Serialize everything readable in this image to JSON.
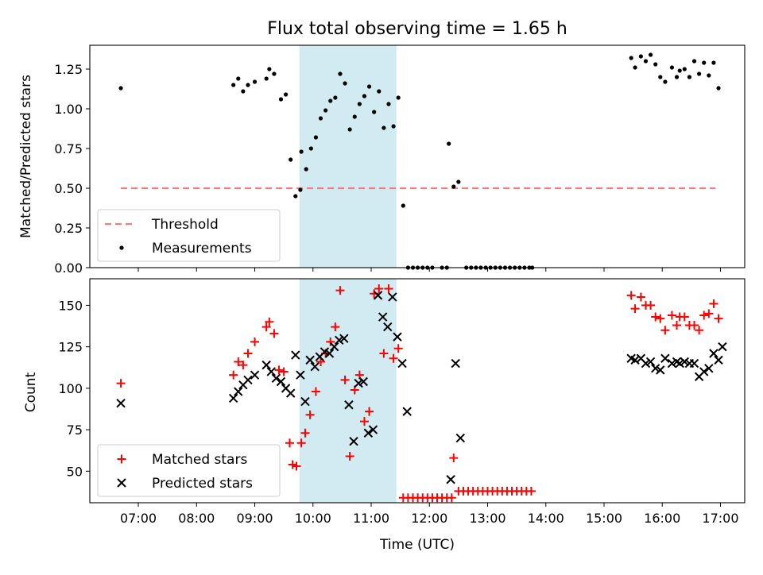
{
  "title": "Flux total observing time = 1.65 h",
  "colors": {
    "shade": "#add8e6",
    "threshold": "#f08080",
    "measurement": "#000000",
    "matched": "#ff0000",
    "predicted": "#000000"
  },
  "chart_data": [
    {
      "type": "scatter",
      "ylabel": "Matched/Predicted stars",
      "ylim": [
        0,
        1.4
      ],
      "yticks": [
        0,
        0.25,
        0.5,
        0.75,
        1.0,
        1.25
      ],
      "ytick_labels": [
        "0.00",
        "0.25",
        "0.50",
        "0.75",
        "1.00",
        "1.25"
      ],
      "legend": [
        "Threshold",
        "Measurements"
      ],
      "legend_location": "lower-left",
      "shaded_interval": [
        "09:46",
        "11:26"
      ],
      "threshold": {
        "name": "Threshold",
        "y": 0.5,
        "x": [
          "06:42",
          "16:55"
        ]
      },
      "series": [
        {
          "name": "Measurements",
          "points": [
            [
              "06:42",
              1.13
            ],
            [
              "08:38",
              1.15
            ],
            [
              "08:43",
              1.19
            ],
            [
              "08:48",
              1.11
            ],
            [
              "08:53",
              1.15
            ],
            [
              "09:00",
              1.17
            ],
            [
              "09:12",
              1.19
            ],
            [
              "09:15",
              1.25
            ],
            [
              "09:20",
              1.22
            ],
            [
              "09:27",
              1.06
            ],
            [
              "09:32",
              1.09
            ],
            [
              "09:37",
              0.68
            ],
            [
              "09:42",
              0.45
            ],
            [
              "09:47",
              0.49
            ],
            [
              "09:48",
              0.73
            ],
            [
              "09:53",
              0.62
            ],
            [
              "09:58",
              0.75
            ],
            [
              "10:03",
              0.82
            ],
            [
              "10:08",
              0.94
            ],
            [
              "10:13",
              0.99
            ],
            [
              "10:18",
              1.05
            ],
            [
              "10:23",
              1.07
            ],
            [
              "10:28",
              1.22
            ],
            [
              "10:33",
              1.16
            ],
            [
              "10:38",
              0.87
            ],
            [
              "10:43",
              0.95
            ],
            [
              "10:48",
              1.03
            ],
            [
              "10:53",
              1.08
            ],
            [
              "10:58",
              1.14
            ],
            [
              "11:03",
              0.98
            ],
            [
              "11:08",
              1.11
            ],
            [
              "11:13",
              0.88
            ],
            [
              "11:18",
              1.03
            ],
            [
              "11:23",
              0.89
            ],
            [
              "11:28",
              1.07
            ],
            [
              "11:33",
              0.39
            ],
            [
              "11:38",
              0.0
            ],
            [
              "11:43",
              0.0
            ],
            [
              "11:48",
              0.0
            ],
            [
              "11:53",
              0.0
            ],
            [
              "11:58",
              0.0
            ],
            [
              "12:03",
              0.0
            ],
            [
              "12:13",
              0.0
            ],
            [
              "12:18",
              0.0
            ],
            [
              "12:20",
              0.78
            ],
            [
              "12:25",
              0.51
            ],
            [
              "12:30",
              0.54
            ],
            [
              "12:38",
              0.0
            ],
            [
              "12:43",
              0.0
            ],
            [
              "12:48",
              0.0
            ],
            [
              "12:53",
              0.0
            ],
            [
              "12:58",
              0.0
            ],
            [
              "13:03",
              0.0
            ],
            [
              "13:08",
              0.0
            ],
            [
              "13:13",
              0.0
            ],
            [
              "13:18",
              0.0
            ],
            [
              "13:23",
              0.0
            ],
            [
              "13:28",
              0.0
            ],
            [
              "13:33",
              0.0
            ],
            [
              "13:38",
              0.0
            ],
            [
              "13:43",
              0.0
            ],
            [
              "13:46",
              0.0
            ],
            [
              "15:28",
              1.32
            ],
            [
              "15:32",
              1.26
            ],
            [
              "15:38",
              1.33
            ],
            [
              "15:43",
              1.3
            ],
            [
              "15:48",
              1.34
            ],
            [
              "15:53",
              1.28
            ],
            [
              "15:58",
              1.2
            ],
            [
              "16:03",
              1.17
            ],
            [
              "16:10",
              1.26
            ],
            [
              "16:15",
              1.2
            ],
            [
              "16:18",
              1.24
            ],
            [
              "16:23",
              1.25
            ],
            [
              "16:28",
              1.2
            ],
            [
              "16:33",
              1.3
            ],
            [
              "16:38",
              1.22
            ],
            [
              "16:43",
              1.29
            ],
            [
              "16:48",
              1.21
            ],
            [
              "16:53",
              1.29
            ],
            [
              "16:58",
              1.13
            ]
          ]
        }
      ]
    },
    {
      "type": "scatter",
      "xlabel": "Time (UTC)",
      "ylabel": "Count",
      "ylim": [
        31,
        166
      ],
      "yticks": [
        50,
        75,
        100,
        125,
        150
      ],
      "ytick_labels": [
        "50",
        "75",
        "100",
        "125",
        "150"
      ],
      "xlim": [
        "06:10",
        "17:25"
      ],
      "xticks": [
        "07:00",
        "08:00",
        "09:00",
        "10:00",
        "11:00",
        "12:00",
        "13:00",
        "14:00",
        "15:00",
        "16:00",
        "17:00"
      ],
      "legend": [
        "Matched stars",
        "Predicted stars"
      ],
      "legend_location": "lower-left",
      "shaded_interval": [
        "09:46",
        "11:26"
      ],
      "series": [
        {
          "name": "Matched stars",
          "marker": "+",
          "points": [
            [
              "06:42",
              103
            ],
            [
              "08:38",
              108
            ],
            [
              "08:43",
              116
            ],
            [
              "08:48",
              114
            ],
            [
              "08:53",
              121
            ],
            [
              "09:00",
              128
            ],
            [
              "09:12",
              137
            ],
            [
              "09:15",
              140
            ],
            [
              "09:20",
              133
            ],
            [
              "09:25",
              111
            ],
            [
              "09:30",
              110
            ],
            [
              "09:36",
              67
            ],
            [
              "09:39",
              54
            ],
            [
              "09:43",
              53
            ],
            [
              "09:48",
              67
            ],
            [
              "09:52",
              73
            ],
            [
              "09:57",
              84
            ],
            [
              "10:03",
              98
            ],
            [
              "10:08",
              116
            ],
            [
              "10:13",
              121
            ],
            [
              "10:18",
              128
            ],
            [
              "10:23",
              137
            ],
            [
              "10:28",
              159
            ],
            [
              "10:33",
              105
            ],
            [
              "10:38",
              59
            ],
            [
              "10:43",
              99
            ],
            [
              "10:48",
              108
            ],
            [
              "10:53",
              80
            ],
            [
              "10:58",
              86
            ],
            [
              "11:03",
              157
            ],
            [
              "11:08",
              160
            ],
            [
              "11:13",
              121
            ],
            [
              "11:18",
              160
            ],
            [
              "11:23",
              118
            ],
            [
              "11:28",
              124
            ],
            [
              "11:33",
              34
            ],
            [
              "11:38",
              34
            ],
            [
              "11:43",
              34
            ],
            [
              "11:48",
              34
            ],
            [
              "11:53",
              34
            ],
            [
              "11:58",
              34
            ],
            [
              "12:03",
              34
            ],
            [
              "12:08",
              34
            ],
            [
              "12:13",
              34
            ],
            [
              "12:18",
              34
            ],
            [
              "12:23",
              34
            ],
            [
              "12:25",
              58
            ],
            [
              "12:30",
              38
            ],
            [
              "12:35",
              38
            ],
            [
              "12:40",
              38
            ],
            [
              "12:45",
              38
            ],
            [
              "12:50",
              38
            ],
            [
              "12:55",
              38
            ],
            [
              "13:00",
              38
            ],
            [
              "13:05",
              38
            ],
            [
              "13:10",
              38
            ],
            [
              "13:15",
              38
            ],
            [
              "13:20",
              38
            ],
            [
              "13:25",
              38
            ],
            [
              "13:30",
              38
            ],
            [
              "13:35",
              38
            ],
            [
              "13:40",
              38
            ],
            [
              "13:45",
              38
            ],
            [
              "15:28",
              156
            ],
            [
              "15:32",
              148
            ],
            [
              "15:38",
              155
            ],
            [
              "15:43",
              150
            ],
            [
              "15:48",
              150
            ],
            [
              "15:53",
              143
            ],
            [
              "15:58",
              142
            ],
            [
              "16:03",
              135
            ],
            [
              "16:10",
              144
            ],
            [
              "16:15",
              138
            ],
            [
              "16:18",
              143
            ],
            [
              "16:23",
              143
            ],
            [
              "16:28",
              138
            ],
            [
              "16:33",
              138
            ],
            [
              "16:38",
              135
            ],
            [
              "16:43",
              144
            ],
            [
              "16:48",
              145
            ],
            [
              "16:53",
              151
            ],
            [
              "16:58",
              142
            ]
          ]
        },
        {
          "name": "Predicted stars",
          "marker": "x",
          "points": [
            [
              "06:42",
              91
            ],
            [
              "08:38",
              94
            ],
            [
              "08:43",
              98
            ],
            [
              "08:48",
              102
            ],
            [
              "08:53",
              105
            ],
            [
              "09:00",
              108
            ],
            [
              "09:12",
              114
            ],
            [
              "09:17",
              110
            ],
            [
              "09:22",
              106
            ],
            [
              "09:27",
              104
            ],
            [
              "09:32",
              100
            ],
            [
              "09:37",
              97
            ],
            [
              "09:42",
              120
            ],
            [
              "09:47",
              108
            ],
            [
              "09:52",
              92
            ],
            [
              "09:57",
              117
            ],
            [
              "10:02",
              113
            ],
            [
              "10:07",
              119
            ],
            [
              "10:12",
              122
            ],
            [
              "10:17",
              121
            ],
            [
              "10:22",
              125
            ],
            [
              "10:27",
              129
            ],
            [
              "10:32",
              130
            ],
            [
              "10:37",
              90
            ],
            [
              "10:42",
              68
            ],
            [
              "10:47",
              103
            ],
            [
              "10:52",
              104
            ],
            [
              "10:57",
              73
            ],
            [
              "11:02",
              75
            ],
            [
              "11:07",
              156
            ],
            [
              "11:12",
              143
            ],
            [
              "11:17",
              137
            ],
            [
              "11:22",
              155
            ],
            [
              "11:27",
              131
            ],
            [
              "11:32",
              115
            ],
            [
              "11:37",
              86
            ],
            [
              "12:22",
              45
            ],
            [
              "12:27",
              115
            ],
            [
              "12:32",
              70
            ],
            [
              "15:28",
              118
            ],
            [
              "15:32",
              117
            ],
            [
              "15:38",
              118
            ],
            [
              "15:43",
              115
            ],
            [
              "15:48",
              116
            ],
            [
              "15:53",
              112
            ],
            [
              "15:58",
              111
            ],
            [
              "16:03",
              118
            ],
            [
              "16:10",
              115
            ],
            [
              "16:15",
              116
            ],
            [
              "16:18",
              115
            ],
            [
              "16:23",
              116
            ],
            [
              "16:28",
              115
            ],
            [
              "16:33",
              115
            ],
            [
              "16:38",
              107
            ],
            [
              "16:43",
              110
            ],
            [
              "16:48",
              112
            ],
            [
              "16:53",
              121
            ],
            [
              "16:58",
              117
            ],
            [
              "17:02",
              125
            ]
          ]
        }
      ]
    }
  ]
}
